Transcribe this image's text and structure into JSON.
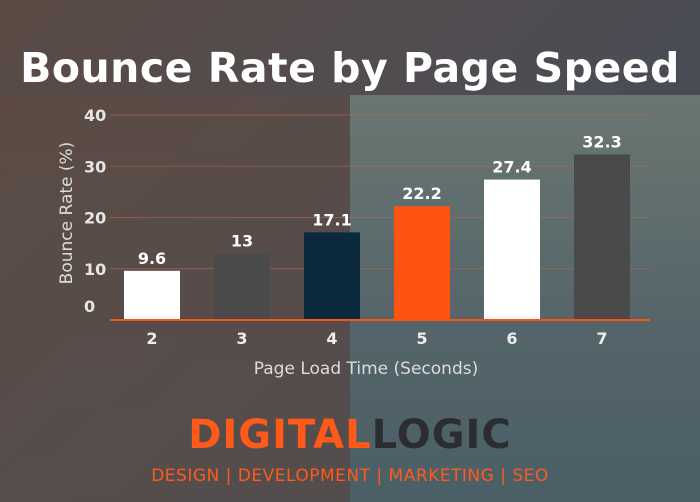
{
  "chart_data": {
    "type": "bar",
    "title": "Bounce Rate by Page Speed",
    "xlabel": "Page Load Time (Seconds)",
    "ylabel": "Bounce Rate (%)",
    "categories": [
      "2",
      "3",
      "4",
      "5",
      "6",
      "7"
    ],
    "values": [
      9.6,
      13,
      17.1,
      22.2,
      27.4,
      32.3
    ],
    "data_labels": [
      "9.6",
      "13",
      "17.1",
      "22.2",
      "27.4",
      "32.3"
    ],
    "bar_colors": [
      "#ffffff",
      "#4a4a4a",
      "#0c2a3e",
      "#ff5314",
      "#ffffff",
      "#4a4a4a"
    ],
    "ylim": [
      0,
      40
    ],
    "yticks": [
      0,
      10,
      20,
      30,
      40
    ],
    "grid": true,
    "grid_color": "#b86a4e",
    "axis_color": "#ff5314"
  },
  "brand": {
    "logo_part1": "DIGITAL",
    "logo_part2": "LOGIC",
    "tagline": "DESIGN | DEVELOPMENT | MARKETING | SEO",
    "accent_color": "#ff5a1a",
    "dark_color": "#2b2d33"
  }
}
